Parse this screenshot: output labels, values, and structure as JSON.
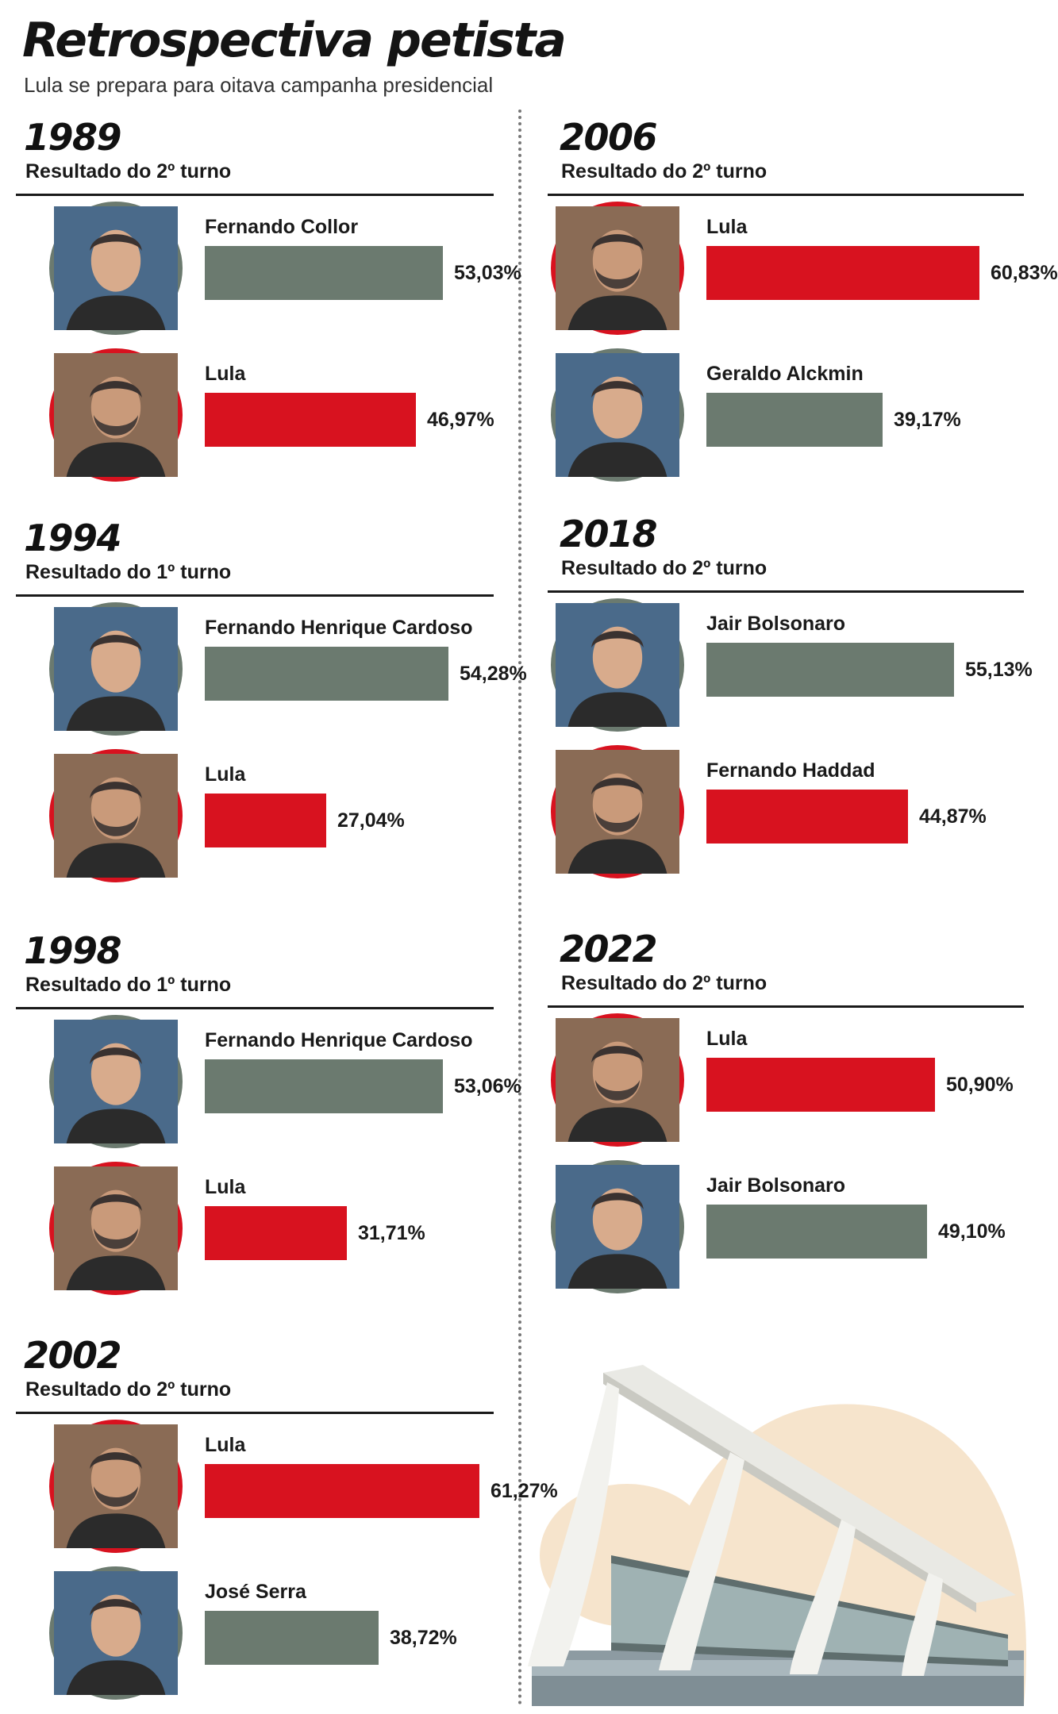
{
  "title": "Retrospectiva petista",
  "subtitle": "Lula se prepara para oitava campanha presidencial",
  "colors": {
    "lula": "#d8121f",
    "opponent": "#6b7a6f"
  },
  "chart_data": {
    "type": "bar",
    "scale_max": 100,
    "elections": [
      {
        "year": "1989",
        "round": "Resultado do 2º turno",
        "candidates": [
          {
            "name": "Fernando Collor",
            "value": 53.03,
            "label": "53,03%",
            "party": "opponent",
            "icon": "collor-portrait-icon"
          },
          {
            "name": "Lula",
            "value": 46.97,
            "label": "46,97%",
            "party": "lula",
            "icon": "lula-portrait-icon"
          }
        ]
      },
      {
        "year": "1994",
        "round": "Resultado do 1º turno",
        "candidates": [
          {
            "name": "Fernando Henrique Cardoso",
            "value": 54.28,
            "label": "54,28%",
            "party": "opponent",
            "icon": "fhc-portrait-icon"
          },
          {
            "name": "Lula",
            "value": 27.04,
            "label": "27,04%",
            "party": "lula",
            "icon": "lula-portrait-icon"
          }
        ]
      },
      {
        "year": "1998",
        "round": "Resultado do 1º turno",
        "candidates": [
          {
            "name": "Fernando Henrique Cardoso",
            "value": 53.06,
            "label": "53,06%",
            "party": "opponent",
            "icon": "fhc-portrait-icon"
          },
          {
            "name": "Lula",
            "value": 31.71,
            "label": "31,71%",
            "party": "lula",
            "icon": "lula-portrait-icon"
          }
        ]
      },
      {
        "year": "2002",
        "round": "Resultado do 2º turno",
        "candidates": [
          {
            "name": "Lula",
            "value": 61.27,
            "label": "61,27%",
            "party": "lula",
            "icon": "lula-portrait-icon"
          },
          {
            "name": "José Serra",
            "value": 38.72,
            "label": "38,72%",
            "party": "opponent",
            "icon": "serra-portrait-icon"
          }
        ]
      },
      {
        "year": "2006",
        "round": "Resultado do 2º turno",
        "candidates": [
          {
            "name": "Lula",
            "value": 60.83,
            "label": "60,83%",
            "party": "lula",
            "icon": "lula-portrait-icon"
          },
          {
            "name": "Geraldo Alckmin",
            "value": 39.17,
            "label": "39,17%",
            "party": "opponent",
            "icon": "alckmin-portrait-icon"
          }
        ]
      },
      {
        "year": "2018",
        "round": "Resultado do 2º turno",
        "candidates": [
          {
            "name": "Jair Bolsonaro",
            "value": 55.13,
            "label": "55,13%",
            "party": "opponent",
            "icon": "bolsonaro-portrait-icon"
          },
          {
            "name": "Fernando Haddad",
            "value": 44.87,
            "label": "44,87%",
            "party": "lula",
            "icon": "haddad-portrait-icon"
          }
        ]
      },
      {
        "year": "2022",
        "round": "Resultado do 2º turno",
        "candidates": [
          {
            "name": "Lula",
            "value": 50.9,
            "label": "50,90%",
            "party": "lula",
            "icon": "lula-portrait-icon"
          },
          {
            "name": "Jair Bolsonaro",
            "value": 49.1,
            "label": "49,10%",
            "party": "opponent",
            "icon": "bolsonaro-portrait-icon"
          }
        ]
      }
    ]
  },
  "illustration": {
    "icon": "planalto-palace-icon"
  }
}
